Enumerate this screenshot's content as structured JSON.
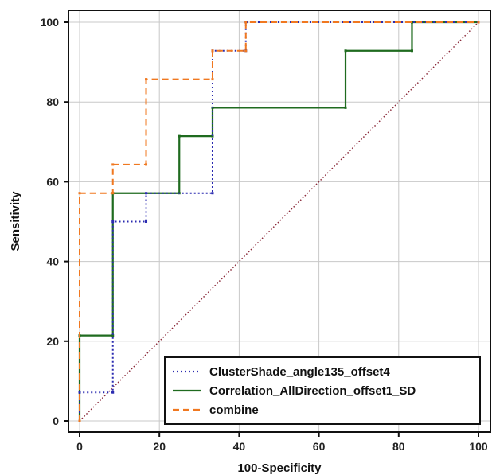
{
  "chart_data": {
    "type": "line",
    "xlabel": "100-Specificity",
    "ylabel": "Sensitivity",
    "xlim": [
      0,
      100
    ],
    "ylim": [
      0,
      100
    ],
    "xticks": [
      0,
      20,
      40,
      60,
      80,
      100
    ],
    "yticks": [
      0,
      20,
      40,
      60,
      80,
      100
    ],
    "grid": true,
    "legend_position": "bottom-right",
    "reference_line": {
      "x": [
        0,
        100
      ],
      "y": [
        0,
        100
      ],
      "color": "#8b2a3a"
    },
    "series": [
      {
        "name": "ClusterShade_angle135_offset4",
        "color": "#2b2bb0",
        "style": "dotted",
        "x": [
          0,
          0,
          8.33,
          8.33,
          16.67,
          16.67,
          33.33,
          33.33,
          41.67,
          41.67,
          100
        ],
        "y": [
          0,
          7.14,
          7.14,
          50,
          50,
          57.14,
          57.14,
          92.86,
          92.86,
          100,
          100
        ]
      },
      {
        "name": "Correlation_AllDirection_offset1_SD",
        "color": "#1f6b1f",
        "style": "solid",
        "x": [
          0,
          0,
          8.33,
          8.33,
          25,
          25,
          33.33,
          33.33,
          66.67,
          66.67,
          83.33,
          83.33,
          100
        ],
        "y": [
          0,
          21.43,
          21.43,
          57.14,
          57.14,
          71.43,
          71.43,
          78.57,
          78.57,
          92.86,
          92.86,
          100,
          100
        ]
      },
      {
        "name": "combine",
        "color": "#f07820",
        "style": "dashed",
        "x": [
          0,
          0,
          8.33,
          8.33,
          16.67,
          16.67,
          33.33,
          33.33,
          41.67,
          41.67,
          100
        ],
        "y": [
          0,
          57.14,
          57.14,
          64.29,
          64.29,
          85.71,
          85.71,
          92.86,
          92.86,
          100,
          100
        ]
      }
    ]
  }
}
